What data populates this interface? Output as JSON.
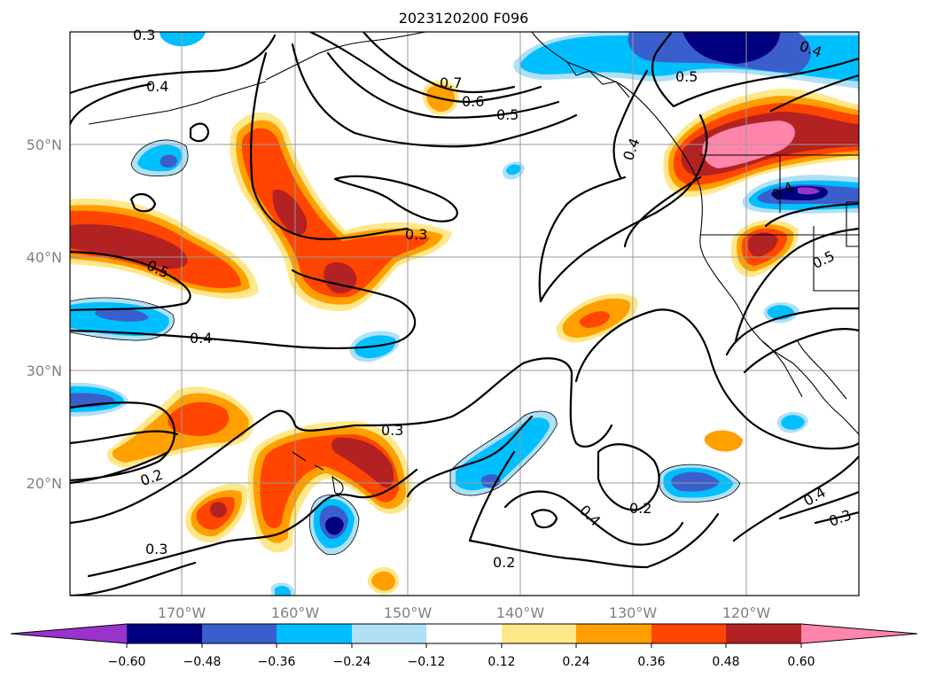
{
  "title": "2023120200 F096",
  "lat_labels": [
    "50°N",
    "40°N",
    "30°N",
    "20°N"
  ],
  "lon_labels": [
    "170°W",
    "160°W",
    "150°W",
    "140°W",
    "130°W",
    "120°W"
  ],
  "colorbar": {
    "ticks": [
      "−0.60",
      "−0.48",
      "−0.36",
      "−0.24",
      "−0.12",
      "0.12",
      "0.24",
      "0.36",
      "0.48",
      "0.60"
    ],
    "colors": {
      "under": "#9933cc",
      "n60_48": "#000080",
      "n48_36": "#3a5fcd",
      "n36_24": "#00bfff",
      "n24_12": "#b0e0f5",
      "mid": "#ffffff",
      "p12_24": "#ffe88a",
      "p24_36": "#ffa000",
      "p36_48": "#ff4500",
      "p48_60": "#b22222",
      "over": "#ff85aa"
    }
  },
  "contour_labels": [
    "0.3",
    "0.4",
    "0.7",
    "0.6",
    "0.5",
    "0.4",
    "0.5",
    "0.3",
    "0.5",
    "0.4",
    "0.3",
    "0.2",
    "0.4",
    "0.2",
    "0.2",
    "0.4",
    "0.3",
    "0.3",
    "0.4",
    "0.5",
    "0.4"
  ]
}
